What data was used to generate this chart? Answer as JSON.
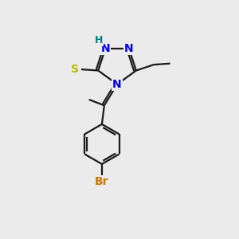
{
  "background_color": "#ebebeb",
  "atom_colors": {
    "N": "#0000ee",
    "S": "#bbbb00",
    "Br": "#cc7700",
    "H": "#008080",
    "C": "#000000"
  },
  "bond_color": "#1a1a1a",
  "lw": 1.6,
  "fs": 10
}
